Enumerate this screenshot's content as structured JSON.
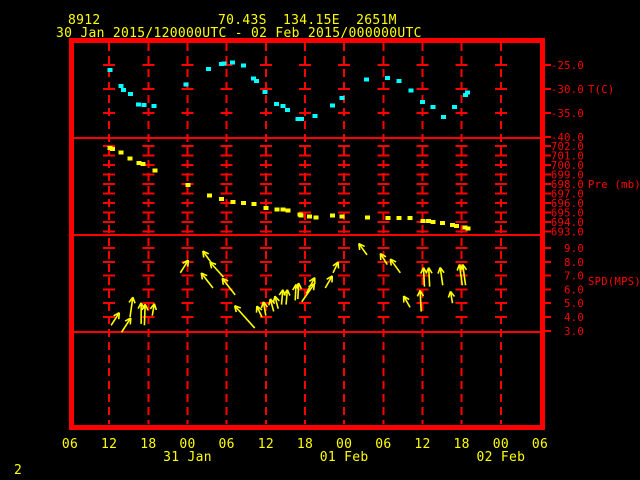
{
  "header": {
    "station_id": "8912",
    "location": "70.43S  134.15E  2651M",
    "time_range": "30 Jan 2015/120000UTC - 02 Feb 2015/000000UTC"
  },
  "page_number": "2",
  "colors": {
    "background": "#000000",
    "axis_red": "#ff0000",
    "label_yellow": "#ffff00",
    "temperature_series": "#00ffff",
    "pressure_series": "#ffff00",
    "wind_series": "#ffff00"
  },
  "chart_data": {
    "type": "line",
    "title": "Station 8912 meteogram 30 Jan 2015 12UTC - 02 Feb 2015 00UTC",
    "grid": "dashed-vertical-with-crosses",
    "x_axis": {
      "unit": "hours since 30 Jan 2015 00UTC",
      "hours_start": 6,
      "hours_end": 78,
      "tick_interval_hours": 6,
      "tick_hours": [
        6,
        12,
        18,
        24,
        30,
        36,
        42,
        48,
        54,
        60,
        66,
        72,
        78
      ],
      "tick_labels": [
        "06",
        "12",
        "18",
        "00",
        "06",
        "12",
        "18",
        "00",
        "06",
        "12",
        "18",
        "00",
        "06"
      ],
      "day_labels": [
        {
          "hour": 24,
          "label": "31 Jan"
        },
        {
          "hour": 48,
          "label": "01 Feb"
        },
        {
          "hour": 72,
          "label": "02 Feb"
        }
      ]
    },
    "panels": [
      {
        "id": "temperature",
        "unit_label": "T(C)",
        "unit_label_value": -30,
        "tick_values": [
          -25,
          -30,
          -35,
          -40
        ],
        "tick_labels": [
          "-25.0",
          "-30.0",
          "-35.0",
          "-40.0"
        ],
        "grid_cross_values": [
          -25,
          -30,
          -35
        ],
        "points": [
          [
            12.1,
            -26.0
          ],
          [
            13.8,
            -29.4
          ],
          [
            14.2,
            -30.2
          ],
          [
            15.3,
            -31.0
          ],
          [
            16.5,
            -33.2
          ],
          [
            17.3,
            -33.3
          ],
          [
            18.9,
            -33.5
          ],
          [
            23.8,
            -29.1
          ],
          [
            27.2,
            -25.8
          ],
          [
            29.2,
            -24.8
          ],
          [
            29.6,
            -24.7
          ],
          [
            30.9,
            -24.5
          ],
          [
            32.6,
            -25.1
          ],
          [
            34.1,
            -27.8
          ],
          [
            34.6,
            -28.3
          ],
          [
            35.9,
            -30.6
          ],
          [
            37.6,
            -33.1
          ],
          [
            38.6,
            -33.5
          ],
          [
            39.3,
            -34.4
          ],
          [
            40.9,
            -36.2
          ],
          [
            41.5,
            -36.2
          ],
          [
            43.5,
            -35.6
          ],
          [
            46.2,
            -33.4
          ],
          [
            47.7,
            -31.9
          ],
          [
            51.4,
            -28.0
          ],
          [
            54.6,
            -27.7
          ],
          [
            56.4,
            -28.3
          ],
          [
            58.2,
            -30.3
          ],
          [
            60.0,
            -32.7
          ],
          [
            61.6,
            -33.8
          ],
          [
            63.2,
            -35.8
          ],
          [
            64.9,
            -33.8
          ],
          [
            66.6,
            -31.3
          ],
          [
            66.9,
            -30.7
          ]
        ]
      },
      {
        "id": "pressure",
        "unit_label": "Pre (mb)",
        "unit_label_value": 698,
        "tick_values": [
          702,
          701,
          700,
          699,
          698,
          697,
          696,
          695,
          694,
          693
        ],
        "tick_labels": [
          "702.0",
          "701.0",
          "700.0",
          "699.0",
          "698.0",
          "697.0",
          "696.0",
          "695.0",
          "694.0",
          "693.0"
        ],
        "grid_cross_values": [
          702,
          701,
          700,
          699,
          698,
          697,
          696,
          695,
          694,
          693
        ],
        "points": [
          [
            12.1,
            701.8
          ],
          [
            12.5,
            701.7
          ],
          [
            13.8,
            701.3
          ],
          [
            15.2,
            700.7
          ],
          [
            16.6,
            700.2
          ],
          [
            17.2,
            700.1
          ],
          [
            19.0,
            699.4
          ],
          [
            24.1,
            697.9
          ],
          [
            27.4,
            696.8
          ],
          [
            29.2,
            696.4
          ],
          [
            31.0,
            696.1
          ],
          [
            32.6,
            696.0
          ],
          [
            34.2,
            695.9
          ],
          [
            36.0,
            695.5
          ],
          [
            37.7,
            695.3
          ],
          [
            38.6,
            695.3
          ],
          [
            39.4,
            695.2
          ],
          [
            41.2,
            694.8
          ],
          [
            41.4,
            694.7
          ],
          [
            42.7,
            694.6
          ],
          [
            43.7,
            694.5
          ],
          [
            46.2,
            694.7
          ],
          [
            47.7,
            694.6
          ],
          [
            51.6,
            694.5
          ],
          [
            54.7,
            694.4
          ],
          [
            56.4,
            694.4
          ],
          [
            58.1,
            694.4
          ],
          [
            60.1,
            694.1
          ],
          [
            60.9,
            694.1
          ],
          [
            61.6,
            694.0
          ],
          [
            63.1,
            693.9
          ],
          [
            64.6,
            693.7
          ],
          [
            65.2,
            693.6
          ],
          [
            66.5,
            693.4
          ],
          [
            67.0,
            693.3
          ]
        ]
      },
      {
        "id": "wind_speed",
        "unit_label": "SPD(MPS)",
        "unit_label_value": 6.6,
        "tick_values": [
          9,
          8,
          7,
          6,
          5,
          4,
          3
        ],
        "tick_labels": [
          "9.0",
          "8.0",
          "7.0",
          "6.0",
          "5.0",
          "4.0",
          "3.0"
        ],
        "grid_cross_values": [
          9,
          8,
          7,
          6,
          5,
          4
        ],
        "arrow_format": [
          "hour",
          "speed_mps",
          "dir_deg_from_up",
          "length_px"
        ],
        "arrows": [
          [
            12.3,
            3.4,
            33,
            15
          ],
          [
            13.9,
            2.9,
            33,
            17
          ],
          [
            15.2,
            4.0,
            8,
            20
          ],
          [
            16.9,
            3.5,
            0,
            21
          ],
          [
            17.4,
            3.4,
            2,
            21
          ],
          [
            18.6,
            4.1,
            10,
            12
          ],
          [
            22.9,
            7.2,
            32,
            15
          ],
          [
            27.7,
            7.9,
            -36,
            15
          ],
          [
            27.9,
            6.1,
            -38,
            19
          ],
          [
            29.5,
            6.9,
            -42,
            20
          ],
          [
            31.3,
            5.6,
            -38,
            21
          ],
          [
            34.3,
            3.2,
            -42,
            30
          ],
          [
            35.4,
            4.0,
            -25,
            12
          ],
          [
            36.0,
            4.1,
            -10,
            14
          ],
          [
            37.2,
            4.4,
            -15,
            13
          ],
          [
            37.9,
            4.6,
            -15,
            13
          ],
          [
            38.4,
            4.9,
            5,
            15
          ],
          [
            39.1,
            4.9,
            5,
            15
          ],
          [
            40.5,
            5.2,
            3,
            16
          ],
          [
            40.9,
            5.3,
            3,
            16
          ],
          [
            41.5,
            5.1,
            35,
            22
          ],
          [
            42.2,
            5.7,
            28,
            18
          ],
          [
            45.1,
            6.1,
            30,
            14
          ],
          [
            46.3,
            7.2,
            25,
            12
          ],
          [
            51.5,
            8.5,
            -36,
            14
          ],
          [
            54.6,
            7.8,
            -32,
            13
          ],
          [
            56.6,
            7.2,
            -36,
            17
          ],
          [
            58.1,
            4.7,
            -30,
            13
          ],
          [
            59.8,
            4.4,
            -3,
            21
          ],
          [
            60.3,
            6.2,
            -3,
            19
          ],
          [
            61.1,
            6.2,
            -3,
            19
          ],
          [
            63.1,
            6.3,
            -8,
            18
          ],
          [
            64.6,
            5.0,
            -10,
            12
          ],
          [
            66.1,
            6.3,
            -8,
            21
          ],
          [
            66.6,
            6.3,
            -8,
            21
          ]
        ]
      }
    ]
  }
}
